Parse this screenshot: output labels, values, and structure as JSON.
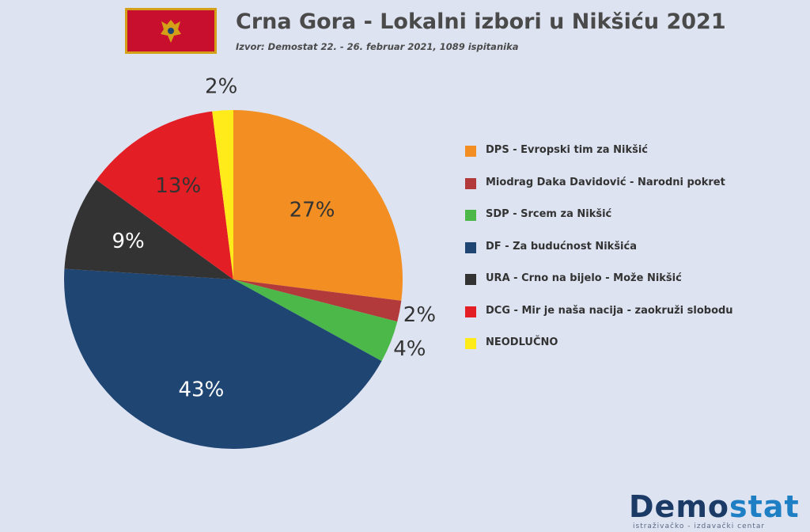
{
  "header": {
    "title": "Crna Gora - Lokalni izbori u Nikšiću 2021",
    "subtitle": "Izvor: Demostat 22. - 26. februar 2021, 1089 ispitanika"
  },
  "chart_data": {
    "type": "pie",
    "title": "Crna Gora - Lokalni izbori u Nikšiću 2021",
    "start_angle_deg": 0,
    "direction": "clockwise",
    "legend_position": "right",
    "slices": [
      {
        "label": "DPS - Evropski tim za Nikšić",
        "value": 27,
        "display": "27%",
        "color": "#f28e22"
      },
      {
        "label": "Miodrag Daka Davidović - Narodni pokret",
        "value": 2,
        "display": "2%",
        "color": "#b33a3a"
      },
      {
        "label": "SDP - Srcem za Nikšić",
        "value": 4,
        "display": "4%",
        "color": "#4cb849"
      },
      {
        "label": "DF - Za budućnost Nikšića",
        "value": 43,
        "display": "43%",
        "color": "#1f4573"
      },
      {
        "label": "URA - Crno na bijelo - Može Nikšić",
        "value": 9,
        "display": "9%",
        "color": "#333333"
      },
      {
        "label": "DCG - Mir je naša nacija - zaokruži slobodu",
        "value": 13,
        "display": "13%",
        "color": "#e31e24"
      },
      {
        "label": "NEODLUČNO",
        "value": 2,
        "display": "2%",
        "color": "#ffeb1a"
      }
    ]
  },
  "footer": {
    "logo_a": "Demo",
    "logo_b": "stat",
    "tagline": "istraživačko - izdavački centar"
  }
}
